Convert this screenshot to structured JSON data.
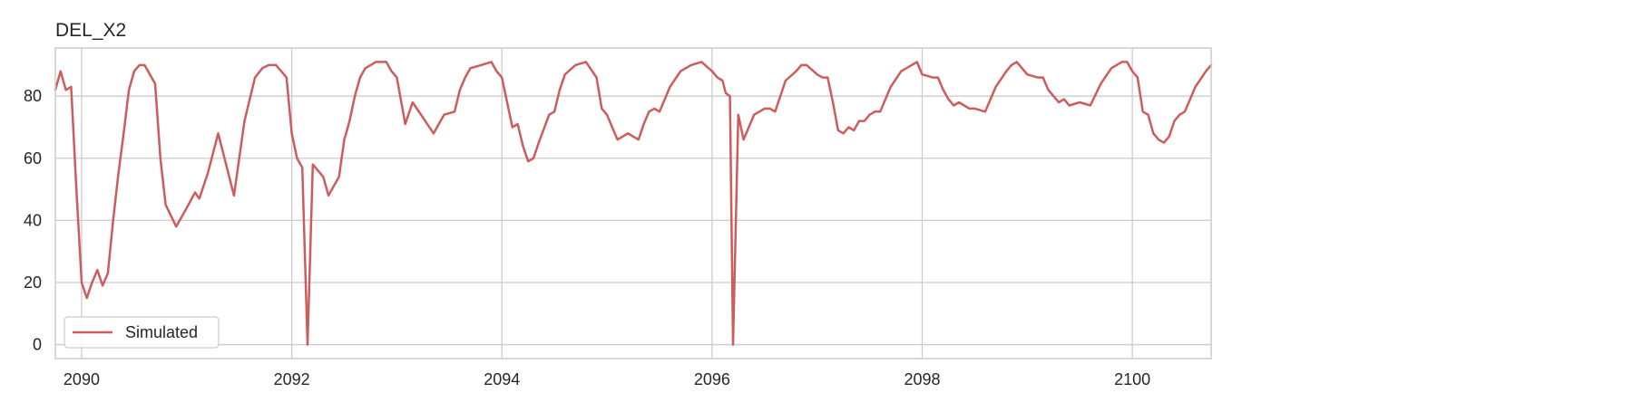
{
  "chart_data": {
    "type": "line",
    "title": "DEL_X2",
    "xlabel": "",
    "ylabel": "",
    "xlim": [
      2089.75,
      2100.75
    ],
    "ylim": [
      -4.5,
      95.5
    ],
    "xticks": [
      2090,
      2092,
      2094,
      2096,
      2098,
      2100
    ],
    "yticks": [
      0,
      20,
      40,
      60,
      80
    ],
    "grid": true,
    "legend": {
      "position": "lower-left",
      "entries": [
        "Simulated"
      ]
    },
    "colors": {
      "series": "#cd5c5c",
      "grid": "#cccccc",
      "spine": "#cccccc",
      "text": "#262626",
      "legend_border": "#cccccc"
    },
    "series": [
      {
        "name": "Simulated",
        "x": [
          2089.75,
          2089.8,
          2089.85,
          2089.9,
          2089.95,
          2090.0,
          2090.05,
          2090.1,
          2090.15,
          2090.2,
          2090.25,
          2090.3,
          2090.35,
          2090.4,
          2090.45,
          2090.5,
          2090.55,
          2090.6,
          2090.65,
          2090.7,
          2090.75,
          2090.8,
          2090.9,
          2091.0,
          2091.08,
          2091.12,
          2091.2,
          2091.3,
          2091.45,
          2091.55,
          2091.65,
          2091.72,
          2091.78,
          2091.85,
          2091.9,
          2091.95,
          2092.0,
          2092.05,
          2092.1,
          2092.15,
          2092.2,
          2092.3,
          2092.35,
          2092.45,
          2092.5,
          2092.55,
          2092.6,
          2092.65,
          2092.7,
          2092.75,
          2092.8,
          2092.9,
          2092.95,
          2093.0,
          2093.08,
          2093.15,
          2093.25,
          2093.35,
          2093.45,
          2093.55,
          2093.6,
          2093.65,
          2093.7,
          2093.8,
          2093.9,
          2093.95,
          2094.0,
          2094.05,
          2094.1,
          2094.15,
          2094.2,
          2094.25,
          2094.3,
          2094.35,
          2094.45,
          2094.5,
          2094.55,
          2094.6,
          2094.7,
          2094.8,
          2094.9,
          2094.95,
          2095.0,
          2095.1,
          2095.2,
          2095.3,
          2095.35,
          2095.4,
          2095.45,
          2095.5,
          2095.6,
          2095.7,
          2095.8,
          2095.9,
          2096.0,
          2096.05,
          2096.1,
          2096.13,
          2096.17,
          2096.2,
          2096.25,
          2096.3,
          2096.35,
          2096.4,
          2096.5,
          2096.55,
          2096.6,
          2096.7,
          2096.8,
          2096.85,
          2096.9,
          2097.0,
          2097.05,
          2097.1,
          2097.15,
          2097.2,
          2097.25,
          2097.3,
          2097.35,
          2097.4,
          2097.45,
          2097.5,
          2097.55,
          2097.6,
          2097.7,
          2097.8,
          2097.9,
          2097.95,
          2098.0,
          2098.1,
          2098.15,
          2098.2,
          2098.25,
          2098.3,
          2098.35,
          2098.4,
          2098.45,
          2098.5,
          2098.6,
          2098.7,
          2098.8,
          2098.85,
          2098.9,
          2099.0,
          2099.1,
          2099.15,
          2099.2,
          2099.25,
          2099.3,
          2099.35,
          2099.4,
          2099.5,
          2099.6,
          2099.7,
          2099.8,
          2099.9,
          2099.95,
          2100.0,
          2100.05,
          2100.1,
          2100.15,
          2100.2,
          2100.25,
          2100.3,
          2100.35,
          2100.4,
          2100.45,
          2100.5,
          2100.6,
          2100.7,
          2100.75
        ],
        "y": [
          82,
          88,
          82,
          83,
          50,
          20,
          15,
          20,
          24,
          19,
          23,
          40,
          55,
          68,
          82,
          88,
          90,
          90,
          87,
          84,
          60,
          45,
          38,
          44,
          49,
          47,
          55,
          68,
          48,
          72,
          86,
          89,
          90,
          90,
          88,
          86,
          68,
          60,
          57,
          0,
          58,
          54,
          48,
          54,
          66,
          72,
          80,
          86,
          89,
          90,
          91,
          91,
          88,
          86,
          71,
          78,
          73,
          68,
          74,
          75,
          82,
          86,
          89,
          90,
          91,
          88,
          86,
          78,
          70,
          71,
          64,
          59,
          60,
          65,
          74,
          75,
          82,
          87,
          90,
          91,
          86,
          76,
          74,
          66,
          68,
          66,
          71,
          75,
          76,
          75,
          83,
          88,
          90,
          91,
          88,
          86,
          85,
          81,
          80,
          0,
          74,
          66,
          70,
          74,
          76,
          76,
          75,
          85,
          88,
          90,
          90,
          87,
          86,
          86,
          78,
          69,
          68,
          70,
          69,
          72,
          72,
          74,
          75,
          75,
          83,
          88,
          90,
          91,
          87,
          86,
          86,
          82,
          79,
          77,
          78,
          77,
          76,
          76,
          75,
          83,
          88,
          90,
          91,
          87,
          86,
          86,
          82,
          80,
          78,
          79,
          77,
          78,
          77,
          84,
          89,
          91,
          91,
          88,
          86,
          75,
          74,
          68,
          66,
          65,
          67,
          72,
          74,
          75,
          83,
          88,
          90
        ]
      }
    ]
  }
}
